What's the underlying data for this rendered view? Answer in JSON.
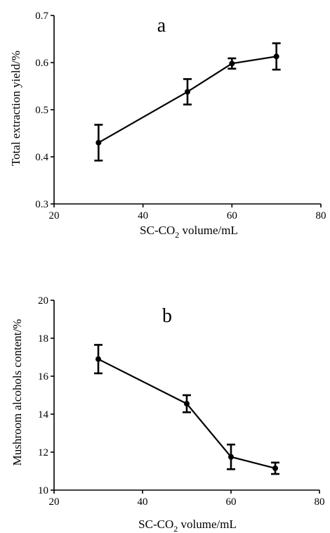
{
  "chart_data": [
    {
      "type": "line",
      "panel_label": "a",
      "x": [
        30,
        50,
        60,
        70
      ],
      "series": [
        {
          "values": [
            0.43,
            0.538,
            0.598,
            0.613
          ],
          "error": [
            0.038,
            0.027,
            0.011,
            0.028
          ]
        }
      ],
      "xlabel_main": "SC-CO",
      "xlabel_sub": "2",
      "xlabel_tail": " volume/mL",
      "ylabel": "Total extraction yield/%",
      "xlim": [
        20,
        80
      ],
      "ylim": [
        0.3,
        0.7
      ],
      "xticks": [
        "20",
        "40",
        "60",
        "80"
      ],
      "yticks": [
        "0.3",
        "0.4",
        "0.5",
        "0.6",
        "0.7"
      ],
      "grid": false,
      "error_bars": true
    },
    {
      "type": "line",
      "panel_label": "b",
      "x": [
        30,
        50,
        60,
        70
      ],
      "series": [
        {
          "values": [
            16.9,
            14.55,
            11.75,
            11.15
          ],
          "error": [
            0.75,
            0.45,
            0.65,
            0.3
          ]
        }
      ],
      "xlabel_main": "SC-CO",
      "xlabel_sub": "2",
      "xlabel_tail": " volume/mL",
      "ylabel": "Mushroom alcohols content/%",
      "xlim": [
        20,
        80
      ],
      "ylim": [
        10,
        20
      ],
      "xticks": [
        "20",
        "40",
        "60",
        "80"
      ],
      "yticks": [
        "10",
        "12",
        "14",
        "16",
        "18",
        "20"
      ],
      "grid": false,
      "error_bars": true
    }
  ]
}
